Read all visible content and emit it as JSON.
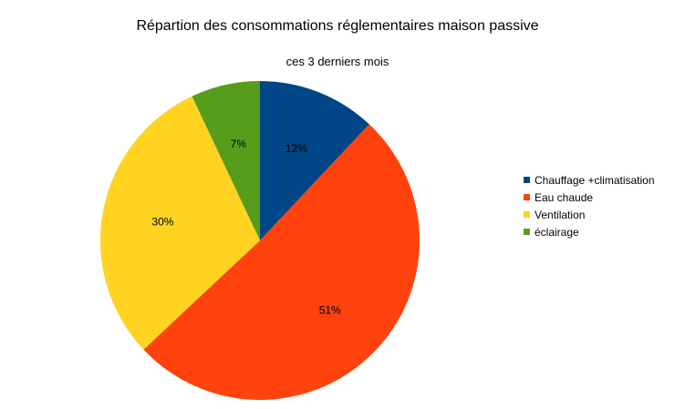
{
  "chart_data": {
    "type": "pie",
    "title": "Répartion des consommations réglementaires maison passive",
    "subtitle": "ces 3 derniers mois",
    "categories": [
      "Chauffage +climatisation",
      "Eau chaude",
      "Ventilation",
      "éclairage"
    ],
    "values": [
      12,
      51,
      30,
      7
    ],
    "labels": [
      "12%",
      "51%",
      "30%",
      "7%"
    ],
    "colors": [
      "#004586",
      "#ff420e",
      "#ffd320",
      "#579d1c"
    ],
    "legend_position": "right"
  }
}
